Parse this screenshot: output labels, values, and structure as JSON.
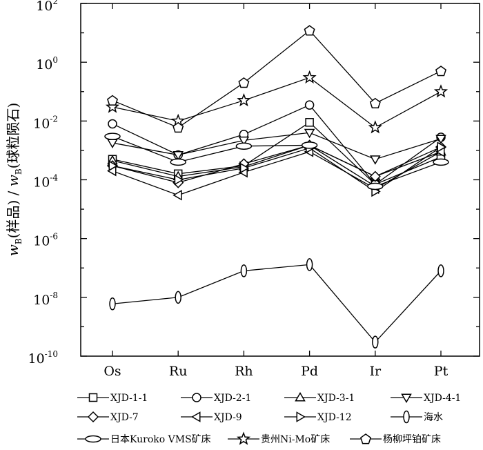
{
  "chart_data": {
    "type": "line",
    "title": "",
    "xlabel": "",
    "ylabel": "w_B(样品)/w_B(球粒陨石)",
    "ylabel_parts": {
      "w1": "w",
      "sub1": "B",
      "paren1": "(样品)",
      "slash": " / ",
      "w2": "w",
      "sub2": "B",
      "paren2": "(球粒陨石)"
    },
    "y_scale": "log",
    "ylim": [
      1e-10,
      100
    ],
    "y_ticks": [
      {
        "base": "10",
        "exp": "2",
        "value": 100
      },
      {
        "base": "10",
        "exp": "0",
        "value": 1
      },
      {
        "base": "10",
        "exp": "-2",
        "value": 0.01
      },
      {
        "base": "10",
        "exp": "-4",
        "value": 0.0001
      },
      {
        "base": "10",
        "exp": "-6",
        "value": 1e-06
      },
      {
        "base": "10",
        "exp": "-8",
        "value": 1e-08
      },
      {
        "base": "10",
        "exp": "-10",
        "value": 1e-10
      }
    ],
    "categories": [
      "Os",
      "Ru",
      "Rh",
      "Pd",
      "Ir",
      "Pt"
    ],
    "series": [
      {
        "name": "XJD-1-1",
        "marker": "square",
        "values": [
          0.0005,
          0.00016,
          0.0003,
          0.009,
          7e-05,
          0.0006
        ]
      },
      {
        "name": "XJD-2-1",
        "marker": "circle",
        "values": [
          0.008,
          0.0007,
          0.0035,
          0.035,
          7e-05,
          0.0028
        ]
      },
      {
        "name": "XJD-3-1",
        "marker": "triangle-up",
        "values": [
          0.00045,
          0.00013,
          0.00028,
          0.0015,
          0.00013,
          0.0009
        ]
      },
      {
        "name": "XJD-4-1",
        "marker": "triangle-down",
        "values": [
          0.0018,
          0.0007,
          0.0022,
          0.004,
          0.0005,
          0.0025
        ]
      },
      {
        "name": "XJD-7",
        "marker": "diamond",
        "values": [
          0.0003,
          8e-05,
          0.00035,
          0.0015,
          0.00013,
          0.0013
        ]
      },
      {
        "name": "XJD-9",
        "marker": "triangle-left",
        "values": [
          0.0002,
          3e-05,
          0.00018,
          0.0009,
          5e-05,
          0.0009
        ]
      },
      {
        "name": "XJD-12",
        "marker": "triangle-right",
        "values": [
          0.0003,
          0.0001,
          0.00025,
          0.0012,
          4e-05,
          0.0013
        ]
      },
      {
        "name": "海水",
        "marker": "ellipse-tall",
        "values": [
          6e-09,
          1e-08,
          8e-08,
          1.3e-07,
          3e-10,
          8e-08
        ]
      },
      {
        "name": "日本Kuroko VMS矿床",
        "marker": "ellipse-wide",
        "values": [
          0.003,
          0.0004,
          0.0014,
          0.0015,
          6e-05,
          0.0004
        ]
      },
      {
        "name": "贵州Ni-Mo矿床",
        "marker": "star",
        "values": [
          0.03,
          0.01,
          0.05,
          0.3,
          0.006,
          0.1
        ]
      },
      {
        "name": "杨柳坪铂矿床",
        "marker": "pentagon",
        "values": [
          0.05,
          0.006,
          0.2,
          12,
          0.04,
          0.5
        ]
      }
    ],
    "legend_position": "bottom",
    "grid": false
  }
}
